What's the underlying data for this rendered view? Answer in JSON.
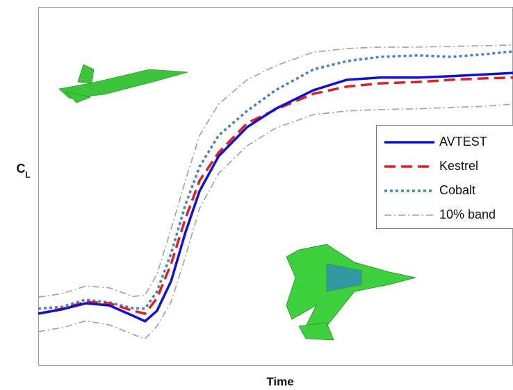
{
  "chart_data": {
    "type": "line",
    "xlabel": "Time",
    "ylabel": "C",
    "ylabel_subscript": "L",
    "xlim": [
      0,
      100
    ],
    "ylim": [
      0,
      1
    ],
    "x": [
      0,
      5,
      10,
      15,
      20,
      22.5,
      25,
      28,
      31,
      34,
      38,
      44,
      50,
      58,
      65,
      72,
      80,
      87,
      94,
      100
    ],
    "series": [
      {
        "name": "AVTEST",
        "color": "#1010d0",
        "style": "solid",
        "values": [
          0.145,
          0.157,
          0.174,
          0.168,
          0.139,
          0.124,
          0.153,
          0.236,
          0.371,
          0.487,
          0.584,
          0.665,
          0.716,
          0.768,
          0.797,
          0.803,
          0.803,
          0.807,
          0.812,
          0.816
        ]
      },
      {
        "name": "Kestrel",
        "color": "#e02020",
        "style": "dashed",
        "values": [
          0.145,
          0.159,
          0.178,
          0.174,
          0.153,
          0.145,
          0.188,
          0.284,
          0.41,
          0.516,
          0.594,
          0.676,
          0.714,
          0.758,
          0.778,
          0.787,
          0.791,
          0.797,
          0.801,
          0.803
        ]
      },
      {
        "name": "Cobalt",
        "color": "#4a7fb5",
        "style": "dotted",
        "values": [
          0.159,
          0.164,
          0.184,
          0.176,
          0.16,
          0.159,
          0.207,
          0.313,
          0.449,
          0.555,
          0.642,
          0.71,
          0.768,
          0.826,
          0.849,
          0.861,
          0.865,
          0.861,
          0.868,
          0.876
        ]
      },
      {
        "name": "10% band",
        "color": "#a0a0a0",
        "style": "dashdot",
        "upper": [
          0.191,
          0.201,
          0.222,
          0.217,
          0.193,
          0.197,
          0.255,
          0.381,
          0.516,
          0.642,
          0.729,
          0.797,
          0.836,
          0.874,
          0.884,
          0.888,
          0.888,
          0.89,
          0.892,
          0.894
        ],
        "lower": [
          0.095,
          0.106,
          0.125,
          0.114,
          0.087,
          0.075,
          0.11,
          0.178,
          0.304,
          0.439,
          0.536,
          0.613,
          0.662,
          0.7,
          0.71,
          0.714,
          0.716,
          0.72,
          0.723,
          0.729
        ]
      }
    ]
  }
}
